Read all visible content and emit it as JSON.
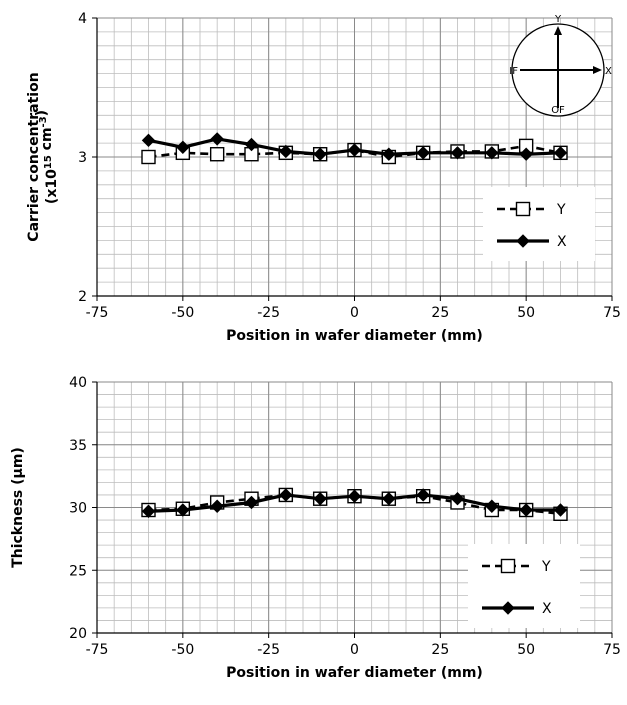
{
  "chart_data": [
    {
      "type": "line",
      "xlabel": "Position in wafer diameter (mm)",
      "ylabel": "Carrier concentration",
      "ylabel_unit_prefix": "(x10",
      "ylabel_unit_exp": "15",
      "ylabel_unit_mid": " cm",
      "ylabel_unit_exp2": "-3",
      "ylabel_unit_suffix": ")",
      "xlim": [
        -75,
        75
      ],
      "ylim": [
        2,
        4
      ],
      "x_ticks": [
        -75,
        -50,
        -25,
        0,
        25,
        50,
        75
      ],
      "y_ticks": [
        2,
        3,
        4
      ],
      "grid": true,
      "legend_position": "right",
      "inset": {
        "top": "Y",
        "right": "X",
        "left": "IF",
        "bottom": "OF"
      },
      "series": [
        {
          "name": "Y",
          "marker": "open-square",
          "line": "dashed",
          "x": [
            -60,
            -50,
            -40,
            -30,
            -20,
            -10,
            0,
            10,
            20,
            30,
            40,
            50,
            60
          ],
          "y": [
            3.0,
            3.03,
            3.02,
            3.02,
            3.03,
            3.02,
            3.05,
            3.0,
            3.03,
            3.04,
            3.04,
            3.08,
            3.03
          ]
        },
        {
          "name": "X",
          "marker": "filled-diamond",
          "line": "solid",
          "x": [
            -60,
            -50,
            -40,
            -30,
            -20,
            -10,
            0,
            10,
            20,
            30,
            40,
            50,
            60
          ],
          "y": [
            3.12,
            3.07,
            3.13,
            3.09,
            3.04,
            3.02,
            3.05,
            3.02,
            3.03,
            3.03,
            3.03,
            3.02,
            3.03
          ]
        }
      ]
    },
    {
      "type": "line",
      "xlabel": "Position in wafer diameter (mm)",
      "ylabel": "Thickness (µm)",
      "xlim": [
        -75,
        75
      ],
      "ylim": [
        20,
        40
      ],
      "x_ticks": [
        -75,
        -50,
        -25,
        0,
        25,
        50,
        75
      ],
      "y_ticks": [
        20,
        25,
        30,
        35,
        40
      ],
      "grid": true,
      "legend_position": "bottom-right",
      "series": [
        {
          "name": "Y",
          "marker": "open-square",
          "line": "dashed",
          "x": [
            -60,
            -50,
            -40,
            -30,
            -20,
            -10,
            0,
            10,
            20,
            30,
            40,
            50,
            60
          ],
          "y": [
            29.8,
            29.9,
            30.4,
            30.7,
            31.0,
            30.7,
            30.9,
            30.7,
            30.9,
            30.4,
            29.8,
            29.8,
            29.5
          ]
        },
        {
          "name": "X",
          "marker": "filled-diamond",
          "line": "solid",
          "x": [
            -60,
            -50,
            -40,
            -30,
            -20,
            -10,
            0,
            10,
            20,
            30,
            40,
            50,
            60
          ],
          "y": [
            29.7,
            29.8,
            30.1,
            30.4,
            31.0,
            30.7,
            30.9,
            30.7,
            31.0,
            30.7,
            30.1,
            29.8,
            29.8
          ]
        }
      ]
    }
  ]
}
